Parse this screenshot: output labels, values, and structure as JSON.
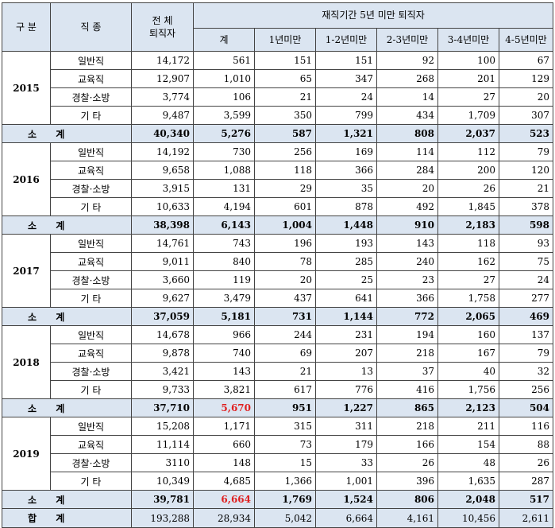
{
  "header": {
    "gubun": "구 분",
    "jikjong": "직 종",
    "total_retirees_line1": "전 체",
    "total_retirees_line2": "퇴직자",
    "group_title": "재직기간 5년 미만 퇴직자",
    "cols": [
      "계",
      "1년미만",
      "1-2년미만",
      "2-3년미만",
      "3-4년미만",
      "4-5년미만"
    ]
  },
  "subtotal_label": "소 계",
  "years": [
    {
      "year": "2015",
      "rows": [
        {
          "job": "일반직",
          "values": [
            "14,172",
            "561",
            "151",
            "151",
            "92",
            "100",
            "67"
          ]
        },
        {
          "job": "교육직",
          "values": [
            "12,907",
            "1,010",
            "65",
            "347",
            "268",
            "201",
            "129"
          ]
        },
        {
          "job": "경찰·소방",
          "values": [
            "3,774",
            "106",
            "21",
            "24",
            "14",
            "27",
            "20"
          ]
        },
        {
          "job": "기 타",
          "values": [
            "9,487",
            "3,599",
            "350",
            "799",
            "434",
            "1,709",
            "307"
          ]
        }
      ],
      "subtotal": [
        "40,340",
        "5,276",
        "587",
        "1,321",
        "808",
        "2,037",
        "523"
      ]
    },
    {
      "year": "2016",
      "rows": [
        {
          "job": "일반직",
          "values": [
            "14,192",
            "730",
            "256",
            "169",
            "114",
            "112",
            "79"
          ]
        },
        {
          "job": "교육직",
          "values": [
            "9,658",
            "1,088",
            "118",
            "366",
            "284",
            "200",
            "120"
          ]
        },
        {
          "job": "경찰·소방",
          "values": [
            "3,915",
            "131",
            "29",
            "35",
            "20",
            "26",
            "21"
          ]
        },
        {
          "job": "기 타",
          "values": [
            "10,633",
            "4,194",
            "601",
            "878",
            "492",
            "1,845",
            "378"
          ]
        }
      ],
      "subtotal": [
        "38,398",
        "6,143",
        "1,004",
        "1,448",
        "910",
        "2,183",
        "598"
      ]
    },
    {
      "year": "2017",
      "rows": [
        {
          "job": "일반직",
          "values": [
            "14,761",
            "743",
            "196",
            "193",
            "143",
            "118",
            "93"
          ]
        },
        {
          "job": "교육직",
          "values": [
            "9,011",
            "840",
            "78",
            "285",
            "240",
            "162",
            "75"
          ]
        },
        {
          "job": "경찰·소방",
          "values": [
            "3,660",
            "119",
            "20",
            "25",
            "23",
            "27",
            "24"
          ]
        },
        {
          "job": "기 타",
          "values": [
            "9,627",
            "3,479",
            "437",
            "641",
            "366",
            "1,758",
            "277"
          ]
        }
      ],
      "subtotal": [
        "37,059",
        "5,181",
        "731",
        "1,144",
        "772",
        "2,065",
        "469"
      ]
    },
    {
      "year": "2018",
      "rows": [
        {
          "job": "일반직",
          "values": [
            "14,678",
            "966",
            "244",
            "231",
            "194",
            "160",
            "137"
          ]
        },
        {
          "job": "교육직",
          "values": [
            "9,878",
            "740",
            "69",
            "207",
            "218",
            "167",
            "79"
          ]
        },
        {
          "job": "경찰·소방",
          "values": [
            "3,421",
            "143",
            "21",
            "13",
            "37",
            "40",
            "32"
          ]
        },
        {
          "job": "기 타",
          "values": [
            "9,733",
            "3,821",
            "617",
            "776",
            "416",
            "1,756",
            "256"
          ]
        }
      ],
      "subtotal": [
        "37,710",
        "5,670",
        "951",
        "1,227",
        "865",
        "2,123",
        "504"
      ],
      "subtotal_red_index": 1
    },
    {
      "year": "2019",
      "rows": [
        {
          "job": "일반직",
          "values": [
            "15,208",
            "1,171",
            "315",
            "311",
            "218",
            "211",
            "116"
          ]
        },
        {
          "job": "교육직",
          "values": [
            "11,114",
            "660",
            "73",
            "179",
            "166",
            "154",
            "88"
          ]
        },
        {
          "job": "경찰·소방",
          "values": [
            "3110",
            "148",
            "15",
            "33",
            "26",
            "48",
            "26"
          ]
        },
        {
          "job": "기 타",
          "values": [
            "10,349",
            "4,685",
            "1,366",
            "1,001",
            "396",
            "1,635",
            "287"
          ]
        }
      ],
      "subtotal": [
        "39,781",
        "6,664",
        "1,769",
        "1,524",
        "806",
        "2,048",
        "517"
      ],
      "subtotal_red_index": 1
    }
  ],
  "total": {
    "label": "합 계",
    "values": [
      "193,288",
      "28,934",
      "5,042",
      "6,664",
      "4,161",
      "10,456",
      "2,611"
    ]
  },
  "colors": {
    "header_bg": "#dbe5f1",
    "highlight_red": "#e02020"
  }
}
